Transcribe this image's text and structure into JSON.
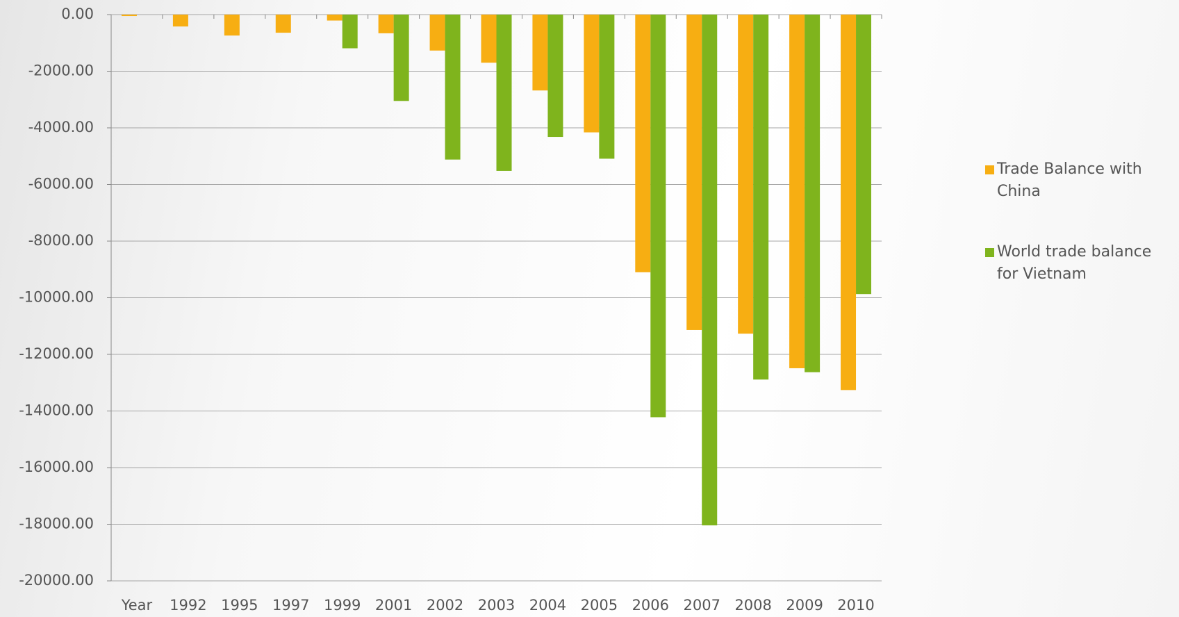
{
  "chart_data": {
    "type": "bar",
    "categories": [
      "Year",
      "1992",
      "1995",
      "1997",
      "1999",
      "2001",
      "2002",
      "2003",
      "2004",
      "2005",
      "2006",
      "2007",
      "2008",
      "2009",
      "2010"
    ],
    "series": [
      {
        "name": "Trade Balance with China",
        "color": "#f7ae12",
        "values": [
          -50,
          -420,
          -740,
          -640,
          -210,
          -660,
          -1270,
          -1700,
          -2680,
          -4160,
          -9100,
          -11140,
          -11270,
          -12490,
          -13260
        ]
      },
      {
        "name": "World trade balance for Vietnam",
        "color": "#7fb41d",
        "values": [
          null,
          null,
          null,
          null,
          -1190,
          -3050,
          -5120,
          -5520,
          -4320,
          -5090,
          -14220,
          -18040,
          -12890,
          -12630,
          -9870
        ]
      }
    ],
    "ylim": [
      -20000,
      0
    ],
    "yticks": [
      {
        "value": 0,
        "label": "0.00"
      },
      {
        "value": -2000,
        "label": "-2000.00"
      },
      {
        "value": -4000,
        "label": "-4000.00"
      },
      {
        "value": -6000,
        "label": "-6000.00"
      },
      {
        "value": -8000,
        "label": "-8000.00"
      },
      {
        "value": -10000,
        "label": "-10000.00"
      },
      {
        "value": -12000,
        "label": "-12000.00"
      },
      {
        "value": -14000,
        "label": "-14000.00"
      },
      {
        "value": -16000,
        "label": "-16000.00"
      },
      {
        "value": -18000,
        "label": "-18000.00"
      },
      {
        "value": -20000,
        "label": "-20000.00"
      }
    ],
    "grid": true,
    "legend": "right"
  }
}
